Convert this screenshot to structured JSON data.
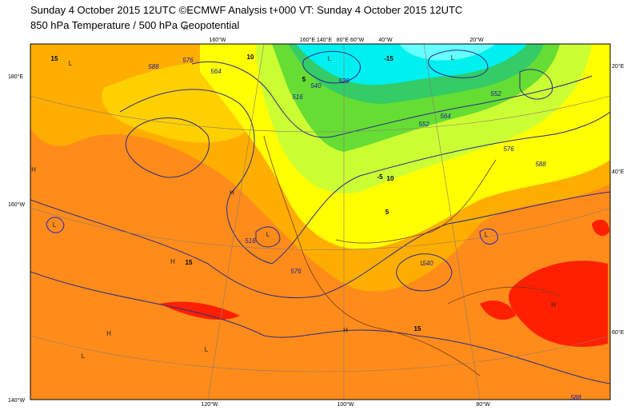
{
  "header": {
    "title": "Sunday 4 October 2015 12UTC ©ECMWF Analysis t+000 VT: Sunday 4 October 2015 12UTC",
    "subtitle": "850 hPa Temperature / 500 hPa Geopotential"
  },
  "map": {
    "left_labels": [
      "180°E",
      "160°W",
      "140°W"
    ],
    "bottom_labels": [
      "120°W",
      "100°W",
      "80°W"
    ],
    "top_labels": [
      "160°W",
      "160°E 140°E",
      "80°E 60°W",
      "40°W",
      "20°W"
    ],
    "right_labels": [
      "20°E",
      "40°E",
      "60°E"
    ],
    "geopotential_labels": [
      588,
      576,
      564,
      540,
      552,
      528,
      516,
      564,
      552,
      576,
      588,
      516,
      576,
      540,
      588
    ],
    "temperature_labels": [
      15,
      -15,
      10,
      5,
      -5,
      15,
      15,
      10,
      5
    ],
    "centers": [
      "L",
      "L",
      "L",
      "L",
      "L",
      "L",
      "L",
      "H",
      "H",
      "H",
      "H",
      "H",
      "H",
      "L",
      "H",
      "L"
    ]
  }
}
